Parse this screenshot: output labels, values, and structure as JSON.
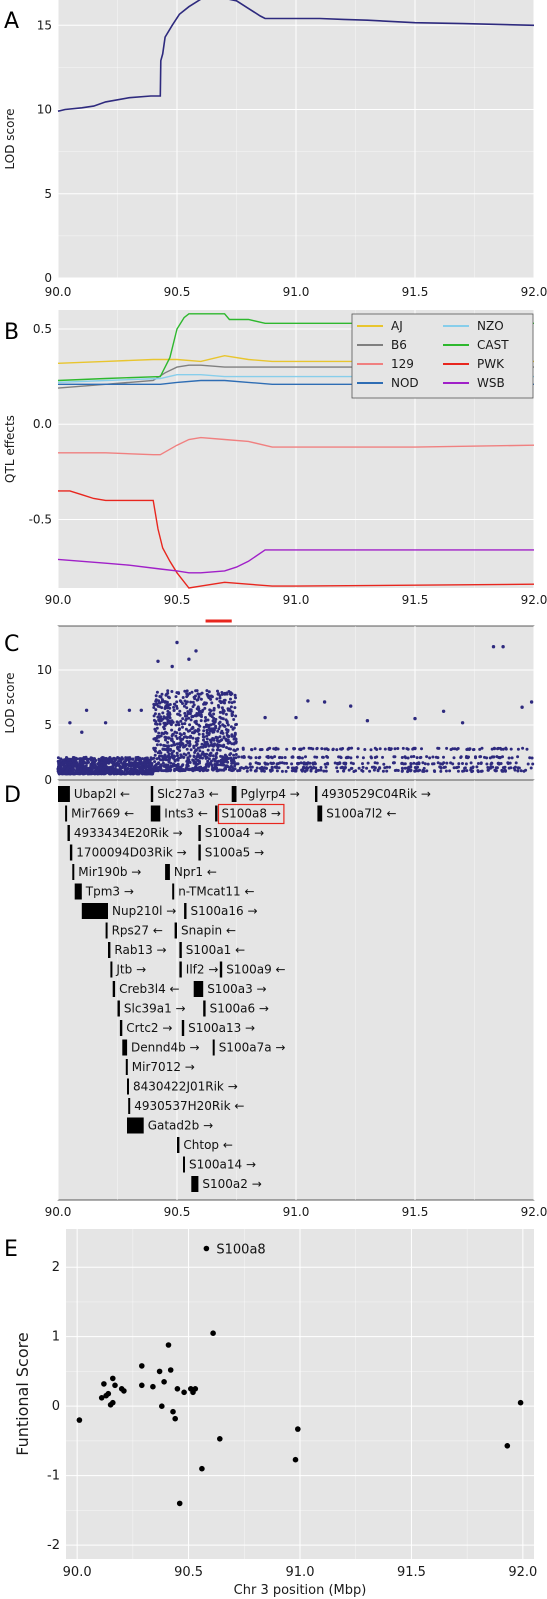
{
  "chart_data": [
    {
      "panel": "A",
      "type": "line",
      "ylabel": "LOD score",
      "xlim": [
        90.0,
        92.0
      ],
      "ylim": [
        0,
        16.5
      ],
      "x_ticks": [
        "90.0",
        "90.5",
        "91.0",
        "91.5",
        "92.0"
      ],
      "y_ticks": [
        "0",
        "5",
        "10",
        "15"
      ],
      "color": "#2E2A7E",
      "series": [
        {
          "x": [
            90.0,
            90.03,
            90.1,
            90.15,
            90.2,
            90.3,
            90.39,
            90.43,
            90.432,
            90.44,
            90.45,
            90.48,
            90.51,
            90.55,
            90.6,
            90.65,
            90.7,
            90.75,
            90.8,
            90.85,
            90.87,
            90.95,
            91.1,
            91.2,
            91.3,
            91.5,
            91.7,
            92.0
          ],
          "y": [
            9.9,
            10.0,
            10.1,
            10.2,
            10.45,
            10.7,
            10.8,
            10.8,
            12.9,
            13.3,
            14.3,
            15.0,
            15.65,
            16.1,
            16.55,
            16.6,
            16.6,
            16.45,
            16.0,
            15.55,
            15.4,
            15.4,
            15.4,
            15.35,
            15.3,
            15.15,
            15.1,
            15.0
          ]
        }
      ]
    },
    {
      "panel": "B",
      "type": "line",
      "ylabel": "QTL effects",
      "xlim": [
        90.0,
        92.0
      ],
      "ylim": [
        -0.86,
        0.6
      ],
      "x_ticks": [
        "90.0",
        "90.5",
        "91.0",
        "91.5",
        "92.0"
      ],
      "y_ticks": [
        "0.5",
        "0.0",
        "-0.5"
      ],
      "legend": "top-right",
      "series": [
        {
          "name": "AJ",
          "color": "#E8C52E",
          "x": [
            90.0,
            90.2,
            90.4,
            90.5,
            90.6,
            90.7,
            90.8,
            90.9,
            91.0,
            91.5,
            92.0
          ],
          "y": [
            0.32,
            0.33,
            0.34,
            0.34,
            0.33,
            0.36,
            0.34,
            0.33,
            0.33,
            0.33,
            0.33
          ]
        },
        {
          "name": "B6",
          "color": "#7F7F7F",
          "x": [
            90.0,
            90.1,
            90.2,
            90.3,
            90.4,
            90.45,
            90.5,
            90.55,
            90.6,
            90.7,
            90.8,
            90.9,
            91.0,
            92.0
          ],
          "y": [
            0.19,
            0.2,
            0.21,
            0.22,
            0.23,
            0.27,
            0.3,
            0.31,
            0.31,
            0.3,
            0.3,
            0.3,
            0.3,
            0.3
          ]
        },
        {
          "name": "129",
          "color": "#F08080",
          "x": [
            90.0,
            90.2,
            90.4,
            90.43,
            90.5,
            90.55,
            90.6,
            90.7,
            90.8,
            90.9,
            91.0,
            91.5,
            92.0
          ],
          "y": [
            -0.15,
            -0.15,
            -0.16,
            -0.16,
            -0.11,
            -0.08,
            -0.07,
            -0.08,
            -0.09,
            -0.12,
            -0.12,
            -0.12,
            -0.11
          ]
        },
        {
          "name": "NOD",
          "color": "#2E6DB4",
          "x": [
            90.0,
            90.2,
            90.43,
            90.5,
            90.6,
            90.7,
            90.8,
            90.9,
            92.0
          ],
          "y": [
            0.21,
            0.21,
            0.21,
            0.22,
            0.23,
            0.23,
            0.22,
            0.21,
            0.21
          ]
        },
        {
          "name": "NZO",
          "color": "#87CEEB",
          "x": [
            90.0,
            90.2,
            90.43,
            90.5,
            90.6,
            90.7,
            90.87,
            92.0
          ],
          "y": [
            0.22,
            0.23,
            0.24,
            0.26,
            0.26,
            0.25,
            0.25,
            0.25
          ]
        },
        {
          "name": "CAST",
          "color": "#2EB82E",
          "x": [
            90.0,
            90.2,
            90.43,
            90.47,
            90.5,
            90.53,
            90.55,
            90.6,
            90.7,
            90.72,
            90.8,
            90.87,
            91.0,
            92.0
          ],
          "y": [
            0.23,
            0.24,
            0.25,
            0.35,
            0.5,
            0.56,
            0.58,
            0.58,
            0.58,
            0.55,
            0.55,
            0.53,
            0.53,
            0.53
          ]
        },
        {
          "name": "PWK",
          "color": "#E8261E",
          "x": [
            90.0,
            90.05,
            90.1,
            90.15,
            90.2,
            90.3,
            90.4,
            90.42,
            90.44,
            90.47,
            90.5,
            90.55,
            90.6,
            90.7,
            90.8,
            90.9,
            91.0,
            92.0
          ],
          "y": [
            -0.35,
            -0.35,
            -0.37,
            -0.39,
            -0.4,
            -0.4,
            -0.4,
            -0.55,
            -0.65,
            -0.72,
            -0.78,
            -0.86,
            -0.85,
            -0.83,
            -0.84,
            -0.85,
            -0.85,
            -0.84
          ]
        },
        {
          "name": "WSB",
          "color": "#A020C8",
          "x": [
            90.0,
            90.1,
            90.2,
            90.3,
            90.43,
            90.5,
            90.55,
            90.6,
            90.7,
            90.75,
            90.8,
            90.87,
            91.0,
            92.0
          ],
          "y": [
            -0.71,
            -0.72,
            -0.73,
            -0.74,
            -0.76,
            -0.77,
            -0.78,
            -0.78,
            -0.77,
            -0.75,
            -0.72,
            -0.66,
            -0.66,
            -0.66
          ]
        }
      ]
    },
    {
      "panel": "C",
      "type": "scatter",
      "ylabel": "LOD score",
      "xlim": [
        90.0,
        92.0
      ],
      "ylim": [
        0,
        14
      ],
      "x_ticks": [],
      "y_ticks": [
        "0",
        "5",
        "10"
      ],
      "color": "#2E2A7E",
      "highlight": {
        "x": [
          90.62,
          90.73
        ],
        "y": 14,
        "color": "#E8261E"
      },
      "bands": [
        {
          "x": [
            90.0,
            90.4
          ],
          "y": [
            0.2,
            1.8
          ],
          "density": "dense"
        },
        {
          "x": [
            90.4,
            90.75
          ],
          "y": [
            0.5,
            8.2
          ],
          "density": "dense"
        },
        {
          "x": [
            90.75,
            92.0
          ],
          "y": [
            0.3,
            2.6
          ],
          "density": "bands"
        }
      ],
      "x": [
        90.5,
        90.58,
        90.55,
        90.42,
        90.48,
        90.3,
        90.35,
        90.12,
        90.2,
        90.05,
        91.87,
        91.83,
        91.12,
        91.23,
        90.87,
        91.0,
        91.05,
        91.3,
        91.5,
        91.7,
        91.95,
        91.99,
        91.62,
        90.1
      ],
      "y": [
        12.8,
        12.0,
        11.2,
        11.0,
        10.5,
        6.3,
        6.3,
        6.3,
        5.1,
        5.1,
        12.4,
        12.4,
        7.1,
        6.7,
        5.6,
        5.6,
        7.2,
        5.3,
        5.5,
        5.1,
        6.6,
        7.1,
        6.2,
        4.2
      ]
    },
    {
      "panel": "D",
      "type": "table",
      "xlim": [
        90.0,
        92.0
      ],
      "x_ticks": [
        "90.0",
        "90.5",
        "91.0",
        "91.5",
        "92.0"
      ],
      "highlighted_gene": "S100a8 →",
      "genes": [
        {
          "label": "Ubap2l ←",
          "start": 90.0,
          "end": 90.05,
          "row": 0
        },
        {
          "label": "Slc27a3 ←",
          "start": 90.39,
          "end": 90.4,
          "row": 0
        },
        {
          "label": "Pglyrp4 →",
          "start": 90.73,
          "end": 90.75,
          "row": 0
        },
        {
          "label": "4930529C04Rik →",
          "start": 91.08,
          "end": 91.09,
          "row": 0
        },
        {
          "label": "Mir7669 ←",
          "start": 90.03,
          "end": 90.035,
          "row": 1
        },
        {
          "label": "Ints3 ←",
          "start": 90.39,
          "end": 90.43,
          "row": 1
        },
        {
          "label": "S100a8 →",
          "start": 90.66,
          "end": 90.67,
          "row": 1
        },
        {
          "label": "S100a7l2 ←",
          "start": 91.09,
          "end": 91.11,
          "row": 1
        },
        {
          "label": "4933434E20Rik →",
          "start": 90.04,
          "end": 90.05,
          "row": 2
        },
        {
          "label": "S100a4 →",
          "start": 90.59,
          "end": 90.6,
          "row": 2
        },
        {
          "label": "1700094D03Rik →",
          "start": 90.05,
          "end": 90.06,
          "row": 3
        },
        {
          "label": "S100a5 →",
          "start": 90.59,
          "end": 90.6,
          "row": 3
        },
        {
          "label": "Mir190b →",
          "start": 90.06,
          "end": 90.065,
          "row": 4
        },
        {
          "label": "Npr1 ←",
          "start": 90.45,
          "end": 90.47,
          "row": 4
        },
        {
          "label": "Tpm3 →",
          "start": 90.07,
          "end": 90.1,
          "row": 5
        },
        {
          "label": "n-TMcat11 ←",
          "start": 90.48,
          "end": 90.485,
          "row": 5
        },
        {
          "label": "Nup210l →",
          "start": 90.1,
          "end": 90.21,
          "row": 6
        },
        {
          "label": "S100a16 →",
          "start": 90.53,
          "end": 90.54,
          "row": 6
        },
        {
          "label": "Rps27 ←",
          "start": 90.2,
          "end": 90.205,
          "row": 7
        },
        {
          "label": "Snapin ←",
          "start": 90.49,
          "end": 90.5,
          "row": 7
        },
        {
          "label": "Rab13 →",
          "start": 90.21,
          "end": 90.22,
          "row": 8
        },
        {
          "label": "S100a1 ←",
          "start": 90.51,
          "end": 90.52,
          "row": 8
        },
        {
          "label": "Jtb →",
          "start": 90.22,
          "end": 90.225,
          "row": 9
        },
        {
          "label": "Ilf2 →",
          "start": 90.51,
          "end": 90.52,
          "row": 9
        },
        {
          "label": "S100a9 ←",
          "start": 90.68,
          "end": 90.69,
          "row": 9
        },
        {
          "label": "Creb3l4 ←",
          "start": 90.23,
          "end": 90.24,
          "row": 10
        },
        {
          "label": "S100a3 →",
          "start": 90.57,
          "end": 90.61,
          "row": 10
        },
        {
          "label": "Slc39a1 →",
          "start": 90.25,
          "end": 90.26,
          "row": 11
        },
        {
          "label": "S100a6 →",
          "start": 90.61,
          "end": 90.62,
          "row": 11
        },
        {
          "label": "Crtc2 →",
          "start": 90.26,
          "end": 90.27,
          "row": 12
        },
        {
          "label": "S100a13 →",
          "start": 90.52,
          "end": 90.53,
          "row": 12
        },
        {
          "label": "Dennd4b →",
          "start": 90.27,
          "end": 90.29,
          "row": 13
        },
        {
          "label": "S100a7a →",
          "start": 90.65,
          "end": 90.655,
          "row": 13
        },
        {
          "label": "Mir7012 →",
          "start": 90.285,
          "end": 90.29,
          "row": 14
        },
        {
          "label": "8430422J01Rik →",
          "start": 90.29,
          "end": 90.295,
          "row": 15
        },
        {
          "label": "4930537H20Rik ←",
          "start": 90.295,
          "end": 90.3,
          "row": 16
        },
        {
          "label": "Gatad2b →",
          "start": 90.29,
          "end": 90.36,
          "row": 17
        },
        {
          "label": "Chtop ←",
          "start": 90.5,
          "end": 90.51,
          "row": 18
        },
        {
          "label": "S100a14 →",
          "start": 90.525,
          "end": 90.53,
          "row": 19
        },
        {
          "label": "S100a2 →",
          "start": 90.56,
          "end": 90.59,
          "row": 20
        }
      ]
    },
    {
      "panel": "E",
      "type": "scatter",
      "xlabel": "Chr 3 position (Mbp)",
      "ylabel": "Funtional Score",
      "xlim": [
        89.95,
        92.05
      ],
      "ylim": [
        -2.2,
        2.55
      ],
      "x_ticks": [
        "90.0",
        "90.5",
        "91.0",
        "91.5",
        "92.0"
      ],
      "y_ticks": [
        "2",
        "1",
        "0",
        "-1",
        "-2"
      ],
      "point_label": "S100a8",
      "x": [
        90.58,
        90.61,
        90.01,
        90.11,
        90.12,
        90.13,
        90.14,
        90.15,
        90.16,
        90.16,
        90.17,
        90.2,
        90.21,
        90.29,
        90.29,
        90.34,
        90.37,
        90.38,
        90.39,
        90.41,
        90.42,
        90.43,
        90.44,
        90.45,
        90.46,
        90.48,
        90.51,
        90.52,
        90.53,
        90.56,
        90.64,
        90.98,
        90.99,
        91.93,
        91.99
      ],
      "y": [
        2.27,
        1.05,
        -0.2,
        0.12,
        0.32,
        0.15,
        0.18,
        0.02,
        0.4,
        0.05,
        0.3,
        0.25,
        0.22,
        0.58,
        0.3,
        0.28,
        0.5,
        0.0,
        0.35,
        0.88,
        0.52,
        -0.08,
        -0.18,
        0.25,
        -1.4,
        0.2,
        0.25,
        0.2,
        0.25,
        -0.9,
        -0.47,
        -0.77,
        -0.33,
        -0.57,
        0.05
      ]
    }
  ],
  "panels": {
    "A": "A",
    "B": "B",
    "C": "C",
    "D": "D",
    "E": "E"
  },
  "colors": {
    "plot_bg": "#E5E5E5",
    "grid": "#FFFFFF",
    "axis_text": "#1A1A1A",
    "highlight_box": "#E8261E"
  }
}
